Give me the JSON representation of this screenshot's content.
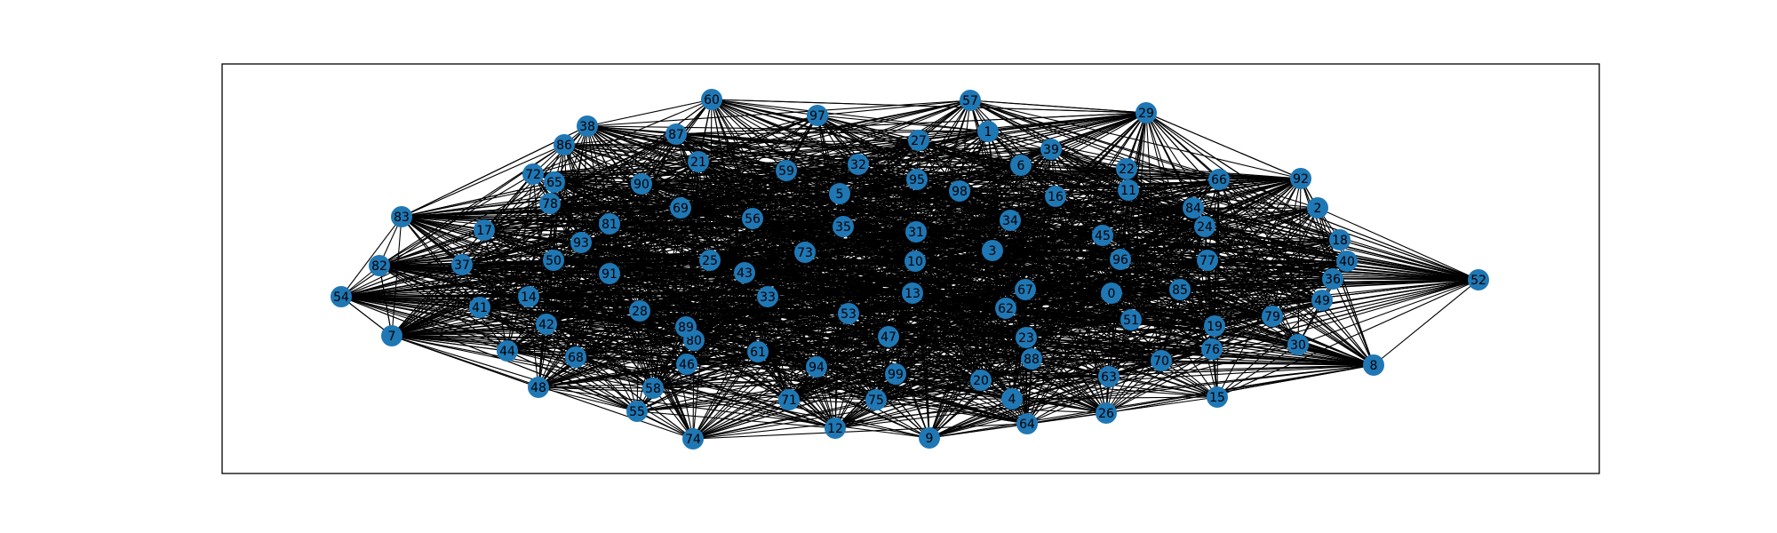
{
  "graph": {
    "node_color": "#1f77b4",
    "edge_color": "#000000",
    "frame_color": "#000000",
    "background": "#ffffff",
    "nodes": [
      "0",
      "1",
      "2",
      "3",
      "4",
      "5",
      "6",
      "7",
      "8",
      "9",
      "10",
      "11",
      "12",
      "13",
      "14",
      "15",
      "16",
      "17",
      "18",
      "19",
      "20",
      "21",
      "22",
      "23",
      "24",
      "25",
      "26",
      "27",
      "28",
      "29",
      "30",
      "31",
      "32",
      "33",
      "34",
      "35",
      "36",
      "37",
      "38",
      "39",
      "40",
      "41",
      "42",
      "43",
      "44",
      "45",
      "46",
      "47",
      "48",
      "49",
      "50",
      "51",
      "52",
      "53",
      "54",
      "55",
      "56",
      "57",
      "58",
      "59",
      "60",
      "61",
      "62",
      "63",
      "64",
      "65",
      "66",
      "67",
      "68",
      "69",
      "70",
      "71",
      "72",
      "73",
      "74",
      "75",
      "76",
      "77",
      "78",
      "79",
      "80",
      "81",
      "82",
      "83",
      "84",
      "85",
      "86",
      "87",
      "88",
      "89",
      "90",
      "91",
      "92",
      "93",
      "94",
      "95",
      "96",
      "97",
      "98",
      "99"
    ],
    "edges_note_visible": ""
  }
}
